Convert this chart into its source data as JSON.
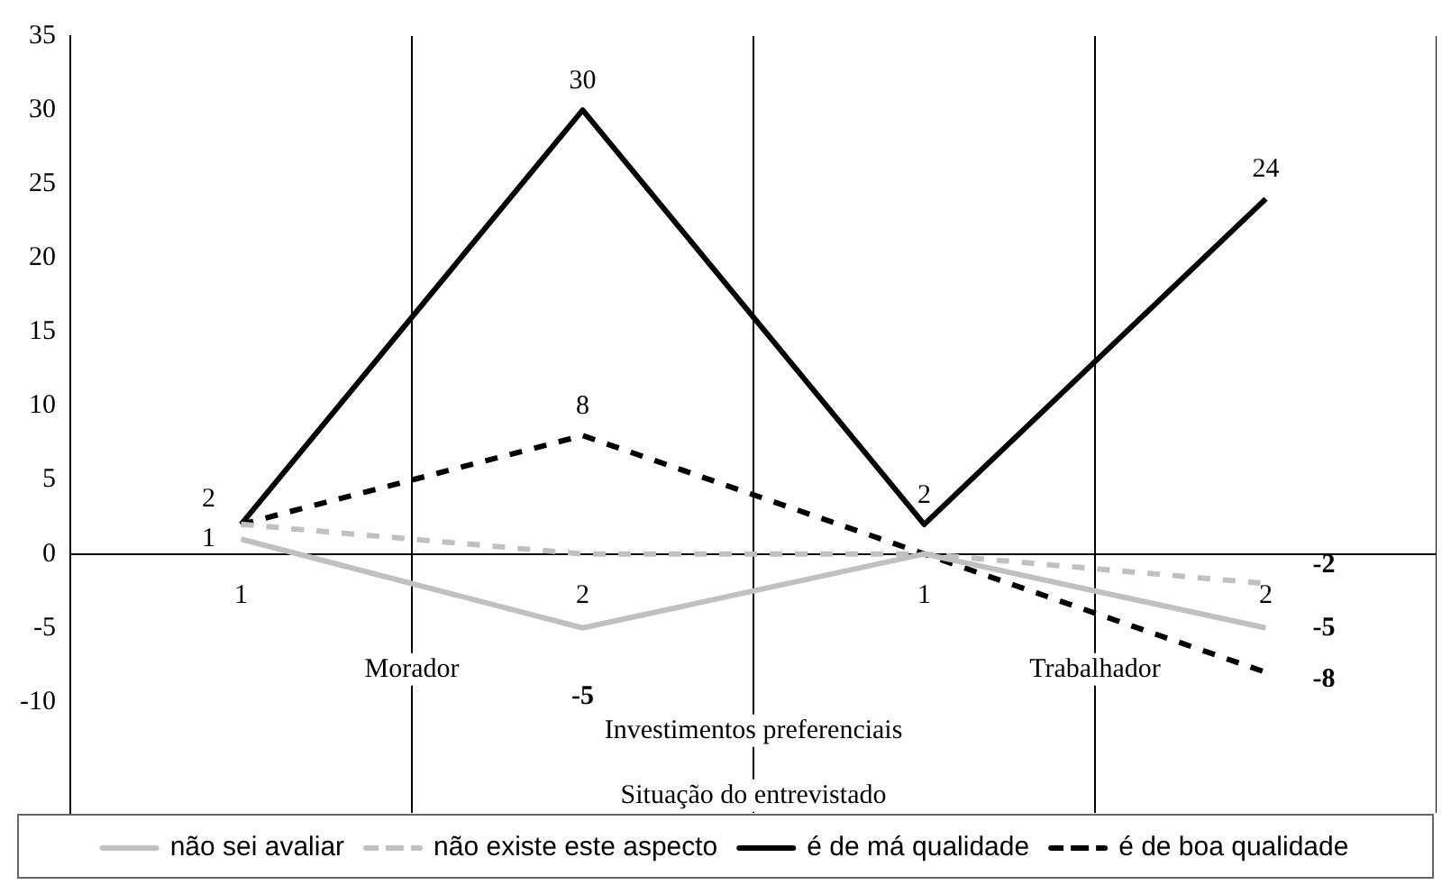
{
  "chart_data": {
    "type": "line",
    "categories": [
      "1",
      "2",
      "1",
      "2"
    ],
    "xlabel": "Investimentos preferenciais",
    "annotations": [
      "Morador",
      "Trabalhador",
      "Situação do entrevistado"
    ],
    "series": [
      {
        "name": "não sei avaliar",
        "color": "#c0c0c0",
        "line_style": "solid",
        "values": [
          1,
          -5,
          0,
          -5
        ],
        "value_labels": [
          "1",
          "-5",
          null,
          "-5"
        ]
      },
      {
        "name": "não existe este aspecto",
        "color": "#c0c0c0",
        "line_style": "dashed",
        "values": [
          2,
          0,
          0,
          -2
        ],
        "value_labels": [
          null,
          null,
          null,
          "-2"
        ]
      },
      {
        "name": "é de má qualidade",
        "color": "#000000",
        "line_style": "solid",
        "values": [
          2,
          30,
          2,
          24
        ],
        "value_labels": [
          "2",
          "30",
          "2",
          "24"
        ]
      },
      {
        "name": "é de boa qualidade",
        "color": "#000000",
        "line_style": "dashed",
        "values": [
          2,
          8,
          0,
          -8
        ],
        "value_labels": [
          null,
          "8",
          null,
          "-8"
        ]
      }
    ],
    "ylim": [
      -17.5,
      35
    ],
    "yticks": [
      -10,
      -5,
      0,
      5,
      10,
      15,
      20,
      25,
      30,
      35
    ],
    "grid": "x",
    "legend": "bottom",
    "marker": "none"
  }
}
